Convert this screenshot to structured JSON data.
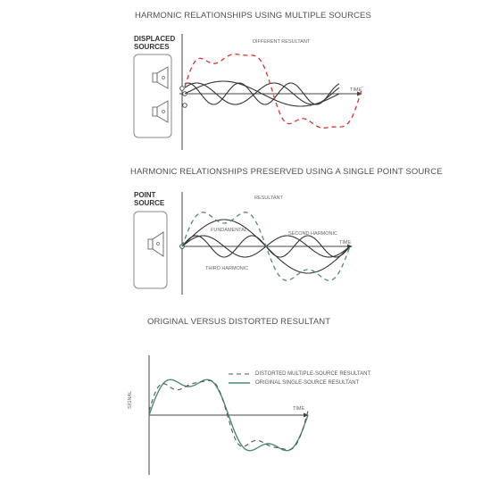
{
  "panel1": {
    "title": "HARMONIC RELATIONSHIPS USING MULTIPLE SOURCES",
    "side_label_line1": "DISPLACED",
    "side_label_line2": "SOURCES",
    "resultant_label": "DIFFERENT RESULTANT",
    "axis_label": "TIME"
  },
  "panel2": {
    "title": "HARMONIC RELATIONSHIPS PRESERVED USING A SINGLE POINT SOURCE",
    "side_label_line1": "POINT",
    "side_label_line2": "SOURCE",
    "resultant_label": "RESULTANT",
    "fundamental_label": "FUNDAMENTAL",
    "second_harmonic_label": "SECOND HARMONIC",
    "third_harmonic_label": "THIRD HARMONIC",
    "axis_label": "TIME"
  },
  "panel3": {
    "title": "ORIGINAL VERSUS DISTORTED RESULTANT",
    "legend_distorted": "DISTORTED MULTIPLE-SOURCE RESULTANT",
    "legend_original": "ORIGINAL SINGLE-SOURCE RESULTANT",
    "axis_label": "TIME",
    "y_axis_label": "SIGNAL"
  },
  "colors": {
    "line": "#333333",
    "red_dashed": "#d9322f",
    "teal": "#4a8a79",
    "box": "#888888"
  }
}
